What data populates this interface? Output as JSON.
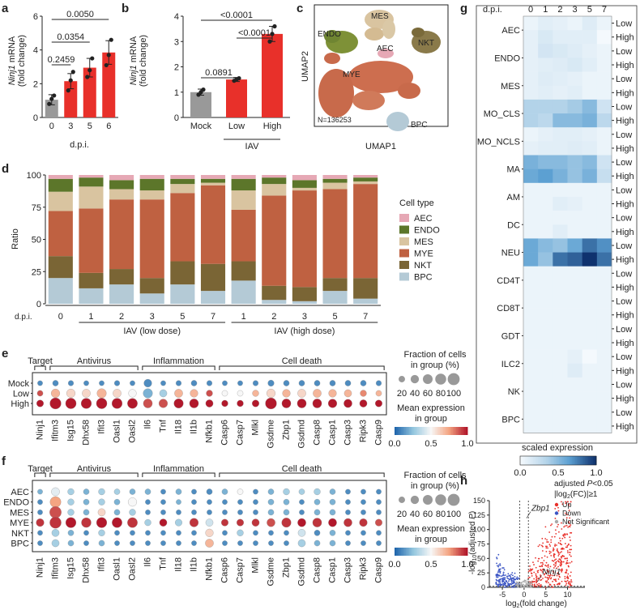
{
  "panel_labels": [
    "a",
    "b",
    "c",
    "d",
    "e",
    "f",
    "g",
    "h"
  ],
  "chart_data": [
    {
      "panel": "a",
      "type": "bar",
      "ylabel_gene": "Ninj1",
      "ylabel_line1": " mRNA",
      "ylabel_line2": "(fold change)",
      "xlabel": "d.p.i.",
      "categories": [
        "0",
        "3",
        "5",
        "6"
      ],
      "values": [
        1.05,
        2.15,
        2.95,
        3.85
      ],
      "errors": [
        0.3,
        0.45,
        0.55,
        0.7
      ],
      "points": [
        [
          0.8,
          1.1,
          1.3
        ],
        [
          1.6,
          2.2,
          2.7
        ],
        [
          2.4,
          2.8,
          3.5
        ],
        [
          3.1,
          3.7,
          4.6
        ]
      ],
      "colors": [
        "#999999",
        "#e8302a",
        "#e8302a",
        "#e8302a"
      ],
      "ylim": [
        0,
        6
      ],
      "yticks": [
        "0",
        "2",
        "4",
        "6"
      ],
      "pvalues": [
        {
          "label": "0.2459",
          "from": 0,
          "to": 1
        },
        {
          "label": "0.0354",
          "from": 0,
          "to": 2
        },
        {
          "label": "0.0050",
          "from": 0,
          "to": 3
        }
      ]
    },
    {
      "panel": "b",
      "type": "bar",
      "ylabel_gene": "Ninj1",
      "ylabel_line1": " mRNA",
      "ylabel_line2": "(fold change)",
      "categories": [
        "Mock",
        "Low",
        "High"
      ],
      "group_label": "IAV",
      "values": [
        1.0,
        1.5,
        3.3
      ],
      "errors": [
        0.12,
        0.08,
        0.3
      ],
      "points": [
        [
          0.9,
          1.0,
          1.1
        ],
        [
          1.45,
          1.5,
          1.55
        ],
        [
          3.0,
          3.3,
          3.6
        ]
      ],
      "colors": [
        "#999999",
        "#e8302a",
        "#e8302a"
      ],
      "ylim": [
        0,
        4
      ],
      "yticks": [
        "0",
        "1",
        "2",
        "3",
        "4"
      ],
      "pvalues": [
        {
          "label": "0.0891",
          "from": 0,
          "to": 1
        },
        {
          "label": "<0.0001",
          "from": 1,
          "to": 2
        },
        {
          "label": "<0.0001",
          "from": 0,
          "to": 2
        }
      ]
    },
    {
      "panel": "c",
      "type": "scatter",
      "xlabel": "UMAP1",
      "ylabel": "UMAP2",
      "note": "N=136253",
      "clusters": [
        "MES",
        "ENDO",
        "NKT",
        "AEC",
        "MYE",
        "BPC"
      ]
    },
    {
      "panel": "d",
      "type": "bar",
      "stacked": true,
      "ylabel": "Ratio",
      "xprefix": "d.p.i.",
      "categories": [
        "0",
        "1",
        "2",
        "3",
        "5",
        "7",
        "1",
        "2",
        "3",
        "5",
        "7"
      ],
      "groups": [
        {
          "label": "IAV (low dose)",
          "from": 1,
          "to": 5
        },
        {
          "label": "IAV (high dose)",
          "from": 6,
          "to": 10
        }
      ],
      "ylim": [
        0,
        100
      ],
      "yticks": [
        "0",
        "25",
        "50",
        "75",
        "100"
      ],
      "legend_title": "Cell type",
      "series": [
        {
          "name": "BPC",
          "color": "#b4cad6",
          "values": [
            20,
            12,
            15,
            8,
            15,
            10,
            18,
            3,
            2,
            10,
            4
          ]
        },
        {
          "name": "NKT",
          "color": "#7a6535",
          "values": [
            17,
            12,
            12,
            12,
            18,
            21,
            15,
            11,
            11,
            10,
            16
          ]
        },
        {
          "name": "MYE",
          "color": "#bf6141",
          "values": [
            35,
            50,
            54,
            61,
            53,
            61,
            40,
            70,
            75,
            69,
            73
          ]
        },
        {
          "name": "MES",
          "color": "#d9c4a0",
          "values": [
            15,
            17,
            8,
            7,
            7,
            2,
            15,
            9,
            2,
            5,
            2
          ]
        },
        {
          "name": "ENDO",
          "color": "#5c762a",
          "values": [
            10,
            7,
            7,
            9,
            4,
            3,
            9,
            5,
            6,
            3,
            3
          ]
        },
        {
          "name": "AEC",
          "color": "#e6a8b5",
          "values": [
            3,
            2,
            4,
            3,
            3,
            3,
            3,
            2,
            4,
            3,
            2
          ]
        }
      ]
    },
    {
      "panel": "e",
      "type": "scatter",
      "subtype": "dotplot",
      "categories": [
        "Ninj1",
        "Ifitm3",
        "Isg15",
        "Dhx58",
        "Ifit3",
        "Oasl1",
        "Oasl2",
        "Il6",
        "Tnf",
        "Il18",
        "Il1b",
        "Nfkb1",
        "Casp6",
        "Casp7",
        "Mlkl",
        "Gsdme",
        "Zbp1",
        "Gsdmd",
        "Casp8",
        "Casp1",
        "Casp3",
        "Ripk3",
        "Casp9"
      ],
      "rows": [
        "Mock",
        "Low",
        "High"
      ],
      "groups": [
        {
          "label": "Target",
          "from": 0,
          "to": 0
        },
        {
          "label": "Antivirus",
          "from": 1,
          "to": 6
        },
        {
          "label": "Inflammation",
          "from": 7,
          "to": 11
        },
        {
          "label": "Cell death",
          "from": 12,
          "to": 22
        }
      ],
      "mean_expression": [
        [
          0.1,
          0.1,
          0.1,
          0.1,
          0.1,
          0.1,
          0.1,
          0.1,
          0.1,
          0.1,
          0.1,
          0.1,
          0.1,
          0.1,
          0.1,
          0.1,
          0.1,
          0.1,
          0.1,
          0.1,
          0.1,
          0.1,
          0.1
        ],
        [
          0.9,
          0.7,
          0.6,
          0.6,
          0.7,
          0.6,
          0.5,
          0.2,
          0.3,
          0.7,
          0.7,
          0.9,
          0.5,
          0.5,
          0.7,
          0.6,
          0.7,
          0.6,
          0.7,
          0.7,
          0.7,
          0.8,
          0.7
        ],
        [
          1.0,
          1.0,
          1.0,
          1.0,
          1.0,
          1.0,
          1.0,
          0.9,
          0.9,
          1.0,
          1.0,
          1.0,
          1.0,
          1.0,
          1.0,
          1.0,
          1.0,
          1.0,
          1.0,
          1.0,
          1.0,
          1.0,
          1.0
        ]
      ],
      "fraction_pct": [
        [
          10,
          15,
          12,
          10,
          10,
          12,
          10,
          35,
          10,
          12,
          15,
          12,
          10,
          10,
          12,
          18,
          15,
          15,
          15,
          15,
          15,
          15,
          12
        ],
        [
          15,
          45,
          45,
          40,
          55,
          40,
          35,
          55,
          30,
          40,
          35,
          20,
          15,
          15,
          20,
          45,
          35,
          40,
          40,
          35,
          30,
          20,
          15
        ],
        [
          25,
          85,
          75,
          70,
          75,
          70,
          65,
          50,
          45,
          55,
          50,
          30,
          20,
          20,
          25,
          85,
          50,
          50,
          50,
          45,
          40,
          30,
          25
        ]
      ],
      "size_legend_title": "Fraction of cells\nin group (%)",
      "size_legend": [
        "20",
        "40",
        "60",
        "80",
        "100"
      ],
      "color_legend_title": "Mean expression\nin group",
      "color_legend_ticks": [
        "0.0",
        "0.5",
        "1.0"
      ]
    },
    {
      "panel": "f",
      "type": "scatter",
      "subtype": "dotplot",
      "categories": [
        "Ninj1",
        "Ifitm3",
        "Isg15",
        "Dhx58",
        "Ifit3",
        "Oasl1",
        "Oasl2",
        "Il6",
        "Tnf",
        "Il18",
        "Il1b",
        "Nfkb1",
        "Casp6",
        "Casp7",
        "Mlkl",
        "Gsdme",
        "Zbp1",
        "Gsdmd",
        "Casp8",
        "Casp1",
        "Casp3",
        "Ripk3",
        "Casp9"
      ],
      "rows": [
        "AEC",
        "ENDO",
        "MES",
        "MYE",
        "NKT",
        "BPC"
      ],
      "groups": [
        {
          "label": "Target",
          "from": 0,
          "to": 0
        },
        {
          "label": "Antivirus",
          "from": 1,
          "to": 6
        },
        {
          "label": "Inflammation",
          "from": 7,
          "to": 11
        },
        {
          "label": "Cell death",
          "from": 12,
          "to": 22
        }
      ],
      "mean_expression": [
        [
          0.2,
          0.45,
          0.3,
          0.2,
          0.3,
          0.3,
          0.2,
          0.2,
          0.1,
          0.2,
          0.1,
          0.1,
          0.2,
          0.5,
          0.1,
          0.2,
          0.3,
          0.3,
          0.3,
          0.2,
          0.1,
          0.1,
          0.1
        ],
        [
          0.1,
          0.75,
          0.3,
          0.2,
          0.3,
          0.2,
          0.5,
          0.1,
          0.1,
          0.2,
          0.1,
          0.1,
          0.1,
          0.1,
          0.1,
          0.2,
          0.2,
          0.1,
          0.2,
          0.2,
          0.1,
          0.1,
          0.1
        ],
        [
          0.1,
          0.9,
          0.3,
          0.2,
          0.6,
          0.2,
          0.3,
          0.1,
          0.1,
          0.1,
          0.1,
          0.1,
          0.1,
          0.1,
          0.1,
          0.2,
          0.2,
          0.1,
          0.2,
          0.2,
          0.1,
          0.1,
          0.1
        ],
        [
          0.95,
          0.95,
          1.0,
          0.95,
          1.0,
          1.0,
          0.95,
          0.3,
          1.0,
          0.3,
          0.95,
          0.4,
          0.95,
          0.95,
          0.95,
          0.9,
          0.95,
          1.0,
          0.95,
          1.0,
          0.95,
          0.95,
          0.9
        ],
        [
          0.1,
          0.3,
          0.2,
          0.1,
          0.3,
          0.1,
          0.1,
          0.1,
          0.1,
          0.1,
          0.1,
          0.6,
          0.1,
          0.3,
          0.1,
          0.1,
          0.1,
          0.4,
          0.1,
          0.2,
          0.1,
          0.1,
          0.1
        ],
        [
          0.1,
          0.3,
          0.2,
          0.1,
          0.2,
          0.1,
          0.1,
          0.1,
          0.1,
          0.1,
          0.1,
          0.7,
          0.1,
          0.1,
          0.1,
          0.1,
          0.1,
          0.3,
          0.2,
          0.2,
          0.1,
          0.1,
          0.1
        ]
      ],
      "fraction_pct": [
        [
          10,
          40,
          20,
          15,
          20,
          15,
          15,
          15,
          10,
          15,
          10,
          15,
          15,
          15,
          10,
          15,
          20,
          15,
          20,
          15,
          10,
          10,
          10
        ],
        [
          10,
          80,
          20,
          15,
          20,
          15,
          45,
          10,
          10,
          10,
          10,
          10,
          10,
          10,
          10,
          15,
          15,
          10,
          15,
          15,
          10,
          10,
          10
        ],
        [
          10,
          95,
          20,
          15,
          30,
          15,
          20,
          10,
          10,
          10,
          10,
          10,
          10,
          10,
          10,
          15,
          15,
          10,
          15,
          15,
          10,
          10,
          10
        ],
        [
          35,
          90,
          70,
          60,
          70,
          65,
          65,
          20,
          30,
          25,
          45,
          30,
          25,
          25,
          30,
          40,
          55,
          40,
          50,
          40,
          40,
          35,
          25
        ],
        [
          10,
          30,
          15,
          10,
          20,
          10,
          10,
          10,
          10,
          10,
          10,
          35,
          10,
          20,
          10,
          10,
          10,
          30,
          15,
          15,
          10,
          10,
          10
        ],
        [
          10,
          30,
          15,
          10,
          15,
          10,
          10,
          10,
          10,
          10,
          10,
          40,
          10,
          10,
          10,
          10,
          10,
          30,
          15,
          15,
          10,
          10,
          10
        ]
      ],
      "size_legend_title": "Fraction of cells\nin group (%)",
      "size_legend": [
        "20",
        "40",
        "60",
        "80",
        "100"
      ],
      "color_legend_title": "Mean expression\nin group",
      "color_legend_ticks": [
        "0.0",
        "0.5",
        "1.0"
      ]
    },
    {
      "panel": "g",
      "type": "heatmap",
      "x_title": "d.p.i.",
      "columns": [
        "0",
        "1",
        "2",
        "3",
        "5",
        "7"
      ],
      "cell_types": [
        "AEC",
        "ENDO",
        "MES",
        "MO_CLS",
        "MO_NCLS",
        "MA",
        "AM",
        "DC",
        "NEU",
        "CD4T",
        "CD8T",
        "GDT",
        "ILC2",
        "NK",
        "BPC"
      ],
      "sublevels": [
        "Low",
        "High"
      ],
      "values": [
        [
          0.05,
          0.1,
          0.08,
          0.05,
          0.12,
          0.05
        ],
        [
          0.08,
          0.15,
          0.1,
          0.1,
          0.1,
          0.0
        ],
        [
          0.08,
          0.18,
          0.15,
          0.12,
          0.08,
          0.05
        ],
        [
          0.08,
          0.1,
          0.12,
          0.15,
          0.1,
          0.05
        ],
        [
          0.08,
          0.12,
          0.1,
          0.08,
          0.05,
          0.05
        ],
        [
          0.08,
          0.1,
          0.08,
          0.1,
          0.05,
          0.05
        ],
        [
          0.35,
          0.35,
          0.35,
          0.4,
          0.5,
          0.2
        ],
        [
          0.35,
          0.3,
          0.5,
          0.5,
          0.55,
          0.3
        ],
        [
          0.05,
          0.08,
          0.1,
          0.1,
          0.08,
          0.05
        ],
        [
          0.08,
          0.1,
          0.1,
          0.12,
          0.1,
          0.05
        ],
        [
          0.55,
          0.5,
          0.5,
          0.45,
          0.5,
          0.2
        ],
        [
          0.6,
          0.65,
          0.55,
          0.45,
          0.55,
          0.25
        ],
        [
          0.05,
          0.05,
          0.05,
          0.05,
          0.05,
          0.05
        ],
        [
          0.05,
          0.05,
          0.1,
          0.08,
          0.05,
          0.05
        ],
        [
          0.05,
          0.05,
          0.05,
          0.05,
          0.05,
          0.05
        ],
        [
          0.05,
          0.05,
          0.1,
          0.05,
          0.05,
          0.05
        ],
        [
          0.6,
          0.5,
          0.45,
          0.6,
          0.8,
          0.7
        ],
        [
          0.6,
          0.45,
          0.8,
          0.85,
          1.0,
          0.8
        ],
        [
          0.05,
          0.05,
          0.05,
          0.05,
          0.05,
          0.05
        ],
        [
          0.05,
          0.05,
          0.05,
          0.05,
          0.05,
          0.05
        ],
        [
          0.05,
          0.05,
          0.05,
          0.05,
          0.05,
          0.05
        ],
        [
          0.05,
          0.05,
          0.05,
          0.05,
          0.05,
          0.05
        ],
        [
          0.05,
          0.05,
          0.05,
          0.05,
          0.05,
          0.05
        ],
        [
          0.05,
          0.05,
          0.05,
          0.05,
          0.05,
          0.05
        ],
        [
          0.05,
          0.05,
          0.05,
          0.08,
          0.0,
          0.05
        ],
        [
          0.05,
          0.05,
          0.05,
          0.12,
          0.05,
          0.05
        ],
        [
          0.05,
          0.05,
          0.05,
          0.05,
          0.05,
          0.05
        ],
        [
          0.05,
          0.05,
          0.05,
          0.05,
          0.05,
          0.05
        ],
        [
          0.05,
          0.05,
          0.05,
          0.05,
          0.05,
          0.05
        ],
        [
          0.05,
          0.05,
          0.05,
          0.05,
          0.05,
          0.05
        ]
      ],
      "colorbar_label": "scaled expression",
      "colorbar_ticks": [
        "0.0",
        "0.5",
        "1.0"
      ]
    },
    {
      "panel": "h",
      "type": "scatter",
      "subtype": "volcano",
      "xlabel_parts": [
        "log",
        "2",
        "(fold change)"
      ],
      "ylabel_parts": [
        "-log",
        "10",
        "(adjusted ",
        "P",
        ")"
      ],
      "xticks": [
        "-5",
        "0",
        "5",
        "10"
      ],
      "xlim": [
        -8,
        14
      ],
      "yticks": [
        "0",
        "25",
        "50",
        "75",
        "100",
        "125",
        "150"
      ],
      "ylim": [
        0,
        150
      ],
      "threshold_line1_pre": "adjusted ",
      "threshold_line1_p": "P",
      "threshold_line1_post": "<0.05",
      "threshold_line2_pre": "|log",
      "threshold_line2_sub": "2",
      "threshold_line2_post": "(FC)|≥1",
      "legend": [
        {
          "label": "Up",
          "color": "#e8302a"
        },
        {
          "label": "Down",
          "color": "#3b55c4"
        },
        {
          "label": "Not Significant",
          "color": "#aaaaaa"
        }
      ],
      "annotations": [
        {
          "label": "Zbp1",
          "x": 1.5,
          "y": 128
        },
        {
          "label": "Ninj1",
          "x": 4.0,
          "y": 18
        }
      ]
    }
  ]
}
